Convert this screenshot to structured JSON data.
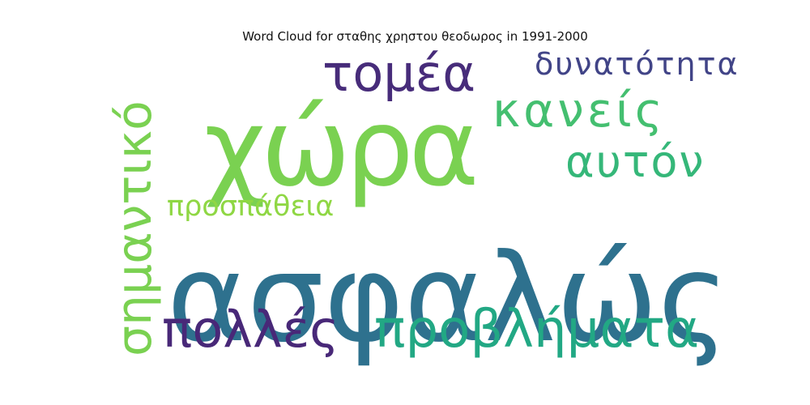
{
  "chart_data": {
    "type": "wordcloud",
    "title": "Word Cloud for σταθης χρηστου θεοδωρος in 1991-2000",
    "words": [
      {
        "text": "ασφαλώς",
        "weight": 1.0,
        "color": "#2e718e"
      },
      {
        "text": "χώρα",
        "weight": 0.85,
        "color": "#7ad151"
      },
      {
        "text": "προβλήματα",
        "weight": 0.48,
        "color": "#22a884"
      },
      {
        "text": "πολλές",
        "weight": 0.45,
        "color": "#482878"
      },
      {
        "text": "σημαντικό",
        "weight": 0.45,
        "color": "#7ad151"
      },
      {
        "text": "τομέα",
        "weight": 0.44,
        "color": "#472c7a"
      },
      {
        "text": "κανείς",
        "weight": 0.42,
        "color": "#44bf70"
      },
      {
        "text": "αυτόν",
        "weight": 0.4,
        "color": "#35b779"
      },
      {
        "text": "δυνατότητα",
        "weight": 0.3,
        "color": "#414487"
      },
      {
        "text": "προσπάθεια",
        "weight": 0.28,
        "color": "#8fd744"
      }
    ]
  }
}
